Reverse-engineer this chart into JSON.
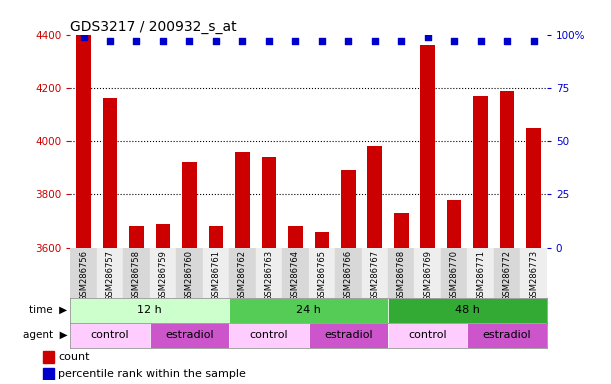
{
  "title": "GDS3217 / 200932_s_at",
  "samples": [
    "GSM286756",
    "GSM286757",
    "GSM286758",
    "GSM286759",
    "GSM286760",
    "GSM286761",
    "GSM286762",
    "GSM286763",
    "GSM286764",
    "GSM286765",
    "GSM286766",
    "GSM286767",
    "GSM286768",
    "GSM286769",
    "GSM286770",
    "GSM286771",
    "GSM286772",
    "GSM286773"
  ],
  "counts": [
    4400,
    4160,
    3680,
    3690,
    3920,
    3680,
    3960,
    3940,
    3680,
    3660,
    3890,
    3980,
    3730,
    4360,
    3780,
    4170,
    4190,
    4050
  ],
  "percentiles": [
    99,
    97,
    97,
    97,
    97,
    97,
    97,
    97,
    97,
    97,
    97,
    97,
    97,
    99,
    97,
    97,
    97,
    97
  ],
  "bar_color": "#cc0000",
  "dot_color": "#0000cc",
  "ylim_left": [
    3600,
    4400
  ],
  "ylim_right": [
    0,
    100
  ],
  "yticks_left": [
    3600,
    3800,
    4000,
    4200,
    4400
  ],
  "yticks_right": [
    0,
    25,
    50,
    75,
    100
  ],
  "ytick_labels_right": [
    "0",
    "25",
    "50",
    "75",
    "100%"
  ],
  "grid_values": [
    3800,
    4000,
    4200
  ],
  "time_groups": [
    {
      "label": "12 h",
      "start": 0,
      "end": 6,
      "color": "#ccffcc"
    },
    {
      "label": "24 h",
      "start": 6,
      "end": 12,
      "color": "#55cc55"
    },
    {
      "label": "48 h",
      "start": 12,
      "end": 18,
      "color": "#33aa33"
    }
  ],
  "agent_groups": [
    {
      "label": "control",
      "start": 0,
      "end": 3,
      "color": "#ffccff"
    },
    {
      "label": "estradiol",
      "start": 3,
      "end": 6,
      "color": "#cc55cc"
    },
    {
      "label": "control",
      "start": 6,
      "end": 9,
      "color": "#ffccff"
    },
    {
      "label": "estradiol",
      "start": 9,
      "end": 12,
      "color": "#cc55cc"
    },
    {
      "label": "control",
      "start": 12,
      "end": 15,
      "color": "#ffccff"
    },
    {
      "label": "estradiol",
      "start": 15,
      "end": 18,
      "color": "#cc55cc"
    }
  ],
  "legend_count_label": "count",
  "legend_pct_label": "percentile rank within the sample",
  "time_label": "time",
  "agent_label": "agent",
  "bar_width": 0.55,
  "tick_color_left": "#cc0000",
  "tick_color_right": "#0000cc"
}
